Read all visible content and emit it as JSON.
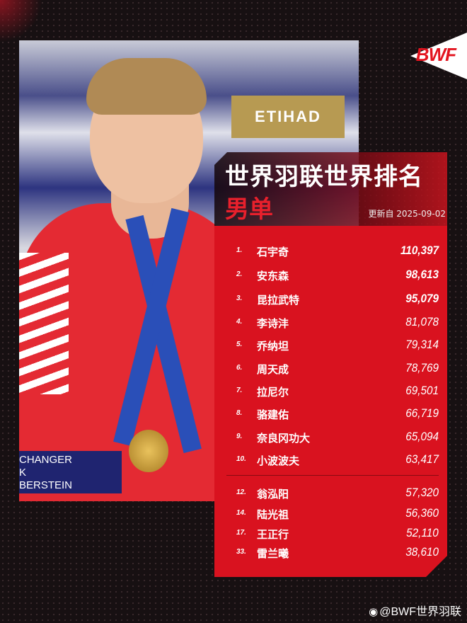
{
  "brand": {
    "logo": "BWF",
    "accent": "#e3141f"
  },
  "photo": {
    "sponsor": "ETIHAD",
    "banner_lines": [
      "CHANGER",
      "K",
      "BERSTEIN"
    ]
  },
  "header": {
    "title": "世界羽联世界排名",
    "category": "男单",
    "updated": "更新自 2025-09-02"
  },
  "rankings": [
    {
      "rank": "1.",
      "name": "石宇奇",
      "points": "110,397"
    },
    {
      "rank": "2.",
      "name": "安东森",
      "points": "98,613"
    },
    {
      "rank": "3.",
      "name": "昆拉武特",
      "points": "95,079"
    },
    {
      "rank": "4.",
      "name": "李诗沣",
      "points": "81,078"
    },
    {
      "rank": "5.",
      "name": "乔纳坦",
      "points": "79,314"
    },
    {
      "rank": "6.",
      "name": "周天成",
      "points": "78,769"
    },
    {
      "rank": "7.",
      "name": "拉尼尔",
      "points": "69,501"
    },
    {
      "rank": "8.",
      "name": "骆建佑",
      "points": "66,719"
    },
    {
      "rank": "9.",
      "name": "奈良冈功大",
      "points": "65,094"
    },
    {
      "rank": "10.",
      "name": "小波波夫",
      "points": "63,417"
    }
  ],
  "others": [
    {
      "rank": "12.",
      "name": "翁泓阳",
      "points": "57,320"
    },
    {
      "rank": "14.",
      "name": "陆光祖",
      "points": "56,360"
    },
    {
      "rank": "17.",
      "name": "王正行",
      "points": "52,110"
    },
    {
      "rank": "33.",
      "name": "雷兰曦",
      "points": "38,610"
    }
  ],
  "footer": {
    "icon": "weibo-icon",
    "handle": "@BWF世界羽联"
  }
}
